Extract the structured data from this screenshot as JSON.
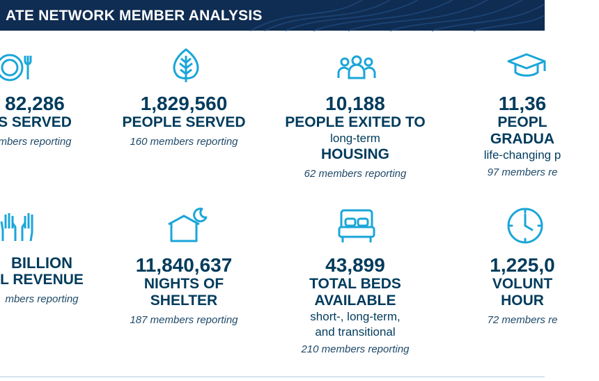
{
  "header": {
    "title": "ATE NETWORK MEMBER ANALYSIS"
  },
  "colors": {
    "banner": "#0f2c52",
    "text": "#003b5c",
    "icon": "#1aa6d8"
  },
  "stats": [
    {
      "icon": "plate-fork-icon",
      "number": "82,286",
      "label": "S SERVED",
      "reporting": "mbers reporting"
    },
    {
      "icon": "leaf-icon",
      "number": "1,829,560",
      "label": "PEOPLE SERVED",
      "reporting": "160 members reporting"
    },
    {
      "icon": "people-group-icon",
      "number": "10,188",
      "label": "PEOPLE EXITED TO",
      "sub": "long-term",
      "label2": "HOUSING",
      "reporting": "62 members reporting"
    },
    {
      "icon": "graduation-cap-icon",
      "number": "11,36",
      "label": "PEOPL",
      "label2": "GRADUA",
      "sub": "life-changing p",
      "reporting": "97 members re"
    },
    {
      "icon": "raised-hands-icon",
      "number": "BILLION",
      "label": "L REVENUE",
      "reporting": "mbers reporting"
    },
    {
      "icon": "shelter-moon-icon",
      "number": "11,840,637",
      "label": "NIGHTS OF",
      "label2": "SHELTER",
      "reporting": "187 members reporting"
    },
    {
      "icon": "bed-icon",
      "number": "43,899",
      "label": "TOTAL BEDS",
      "label2": "AVAILABLE",
      "sub": "short-, long-term,",
      "sub2": "and transitional",
      "reporting": "210 members reporting"
    },
    {
      "icon": "clock-icon",
      "number": "1,225,0",
      "label": "VOLUNT",
      "label2": "HOUR",
      "reporting": "72 members re"
    }
  ]
}
